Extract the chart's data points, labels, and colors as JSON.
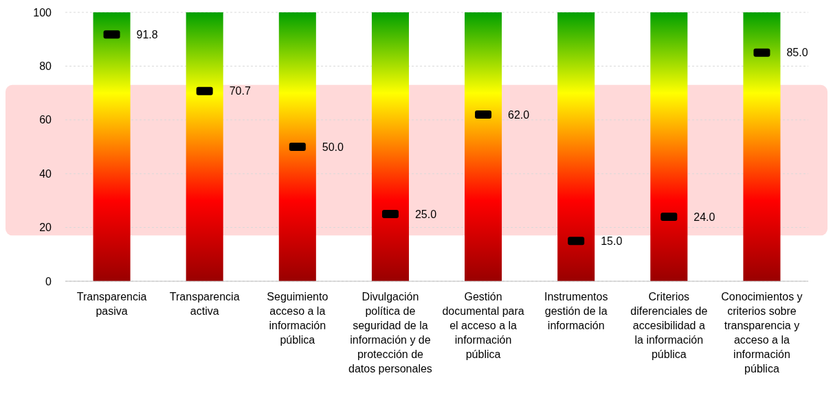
{
  "chart_data": {
    "type": "bar",
    "categories": [
      "Transparencia pasiva",
      "Transparencia activa",
      "Seguimiento acceso a la información pública",
      "Divulgación política de seguridad de la información y de protección de datos personales",
      "Gestión documental para el acceso a la información pública",
      "Instrumentos gestión de la información",
      "Criterios diferenciales de accesibilidad a la información pública",
      "Conocimientos y criterios sobre transparencia y acceso a la información pública"
    ],
    "series": [
      {
        "type": "bar",
        "color": "#ffff00",
        "values": [
          100,
          100,
          100,
          100,
          100,
          100,
          100,
          100
        ]
      },
      {
        "type": "scatter",
        "color": "#000000",
        "x": [
          "Transparencia pasiva",
          "Transparencia activa",
          "Seguimiento acceso a la información pública",
          "Divulgación política de seguridad de la información y de protección de datos personales",
          "Gestión documental para el acceso a la información pública",
          "Instrumentos gestión de la información",
          "Criterios diferenciales de accesibilidad a la información pública",
          "Conocimientos y criterios sobre transparencia y acceso a la información pública"
        ],
        "values": [
          91.8,
          70.7,
          50.0,
          25.0,
          62.0,
          15.0,
          24.0,
          85.0
        ],
        "value_labels": [
          "91.8",
          "70.7",
          "50.0",
          "25.0",
          "62.0",
          "15.0",
          "24.0",
          "85.0"
        ]
      }
    ],
    "ylim": [
      0,
      100
    ],
    "yticks": [
      0,
      20,
      40,
      60,
      80,
      100
    ],
    "grid": "y",
    "marker": "square",
    "bands": [
      {
        "axis": "y",
        "from": 17,
        "to": 73,
        "color": "#ffd9d9"
      }
    ]
  }
}
